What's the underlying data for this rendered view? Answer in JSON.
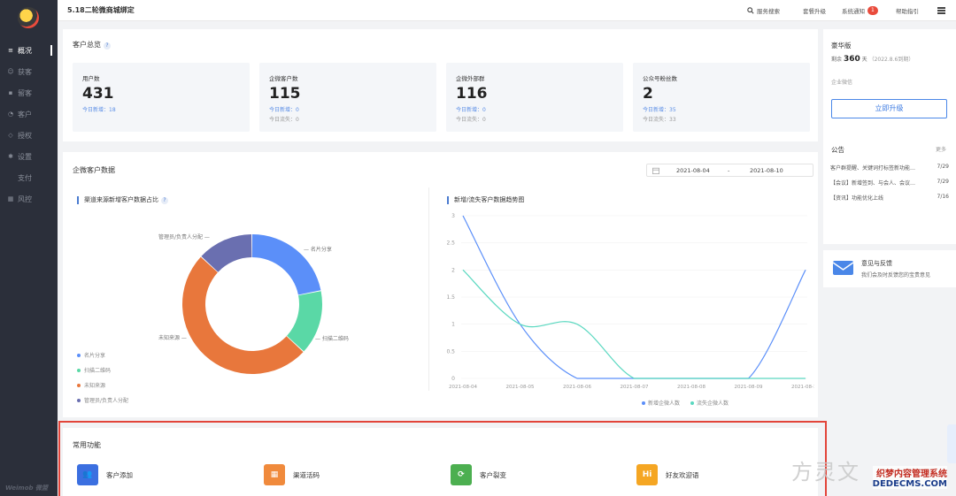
{
  "sidebar": {
    "items": [
      {
        "label": "概况",
        "icon": "overview-icon",
        "glyph": "≡"
      },
      {
        "label": "获客",
        "icon": "user-icon",
        "glyph": "☺"
      },
      {
        "label": "留客",
        "icon": "message-icon",
        "glyph": "▪"
      },
      {
        "label": "客户",
        "icon": "customer-icon",
        "glyph": "◔"
      },
      {
        "label": "授权",
        "icon": "authorize-icon",
        "glyph": "◇"
      },
      {
        "label": "设置",
        "icon": "settings-icon",
        "glyph": "✱"
      },
      {
        "label": "支付",
        "icon": "",
        "glyph": ""
      },
      {
        "label": "风控",
        "icon": "risk-icon",
        "glyph": "▦"
      }
    ],
    "brand": "Weimob 微盟"
  },
  "topbar": {
    "title": "5.18二轮微商城绑定",
    "search": "服务搜索",
    "upgrade": "套餐升级",
    "notify": "系统通知",
    "notify_count": "1",
    "help": "帮助指引"
  },
  "overview": {
    "title": "客户总览",
    "help": "?",
    "stats": [
      {
        "label": "用户数",
        "value": "431",
        "line1": "今日新增：18",
        "line2": ""
      },
      {
        "label": "企微客户数",
        "value": "115",
        "line1": "今日新增：0",
        "line2": "今日流失：0"
      },
      {
        "label": "企微外部群",
        "value": "116",
        "line1": "今日新增：0",
        "line2": "今日流失：0"
      },
      {
        "label": "公众号粉丝数",
        "value": "2",
        "line1": "今日新增：35",
        "line2": "今日流失：33"
      }
    ]
  },
  "plan": {
    "name": "豪华版",
    "remain_prefix": "剩余",
    "remain_days": "360",
    "remain_unit": "天",
    "expire": "（2022.8.6到期）",
    "type": "企业微信",
    "button": "立即升级"
  },
  "notice": {
    "title": "公告",
    "more": "更多",
    "items": [
      {
        "text": "客户群提醒、关键词打标签新功能…",
        "date": "7/29"
      },
      {
        "text": "【会议】新增签到、与会人、会议…",
        "date": "7/29"
      },
      {
        "text": "【资讯】功能优化上线",
        "date": "7/16"
      }
    ]
  },
  "feedback": {
    "title": "意见与反馈",
    "desc": "我们会及时反馈您的宝贵意见"
  },
  "customer_data": {
    "title": "企微客户数据",
    "date_start": "2021-08-04",
    "date_sep": "-",
    "date_end": "2021-08-10"
  },
  "functions": {
    "title": "常用功能",
    "items": [
      {
        "label": "客户添加",
        "color": "#3b6fe0",
        "glyph": "👥"
      },
      {
        "label": "渠道活码",
        "color": "#f08a3c",
        "glyph": "▦"
      },
      {
        "label": "客户裂变",
        "color": "#4caf50",
        "glyph": "⟳"
      },
      {
        "label": "好友欢迎语",
        "color": "#f5a623",
        "glyph": "Hi"
      }
    ]
  },
  "watermark": {
    "big": "方灵文",
    "line1": "织梦内容管理系统",
    "line2": "DEDECMS.COM"
  },
  "chart_data": [
    {
      "type": "pie",
      "title": "渠道来源新增客户数据占比",
      "labels": [
        "名片分享",
        "扫描二维码",
        "未知来源",
        "管理员/负责人分配"
      ],
      "values": [
        22,
        15,
        50,
        13
      ],
      "colors": [
        "#5b8ff9",
        "#5ad8a6",
        "#e8773c",
        "#6a6fb0"
      ],
      "legend_position": "bottom-left"
    },
    {
      "type": "line",
      "title": "新增/流失客户数据趋势图",
      "x": [
        "2021-08-04",
        "2021-08-05",
        "2021-08-06",
        "2021-08-07",
        "2021-08-08",
        "2021-08-09",
        "2021-08-10"
      ],
      "ylim": [
        0,
        3
      ],
      "yticks": [
        "3",
        "2.5",
        "2",
        "1.5",
        "1",
        "0.5",
        "0"
      ],
      "series": [
        {
          "name": "新增企微人数",
          "values": [
            3,
            1,
            0,
            0,
            0,
            0,
            2
          ],
          "color": "#5b8ff9"
        },
        {
          "name": "流失企微人数",
          "values": [
            2,
            1,
            1,
            0,
            0,
            0,
            0
          ],
          "color": "#5ad8c0"
        }
      ],
      "legend_position": "bottom"
    }
  ]
}
